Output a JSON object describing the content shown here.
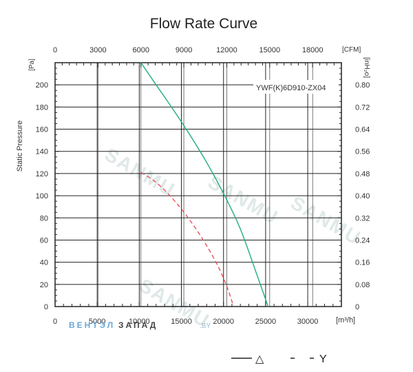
{
  "chart_data": {
    "type": "line",
    "title": "Flow Rate Curve",
    "model_label": "YWF(K)6D910-ZX04",
    "ylabel": "Static Pressure",
    "y_unit_left": "[Pa]",
    "y_unit_right": "[inH₂o]",
    "x_unit_bottom": "[m³/h]",
    "x_unit_top": "[CFM]",
    "xlim": [
      0,
      34000
    ],
    "ylim": [
      0,
      220
    ],
    "grid": true,
    "bottom_ticks": [
      "0",
      "5000",
      "10000",
      "15000",
      "20000",
      "25000",
      "30000"
    ],
    "bottom_tick_values": [
      0,
      5000,
      10000,
      15000,
      20000,
      25000,
      30000
    ],
    "top_ticks": [
      "0",
      "3000",
      "6000",
      "9000",
      "12000",
      "15000",
      "18000"
    ],
    "top_tick_values_cfm": [
      0,
      3000,
      6000,
      9000,
      12000,
      15000,
      18000
    ],
    "left_ticks": [
      "0",
      "20",
      "40",
      "60",
      "80",
      "100",
      "120",
      "140",
      "160",
      "180",
      "200"
    ],
    "left_tick_values": [
      0,
      20,
      40,
      60,
      80,
      100,
      120,
      140,
      160,
      180,
      200
    ],
    "right_ticks": [
      "0",
      "0.08",
      "0.16",
      "0.24",
      "0.32",
      "0.40",
      "0.48",
      "0.56",
      "0.64",
      "0.72",
      "0.80"
    ],
    "right_tick_values_pa": [
      0,
      20,
      40,
      60,
      80,
      100,
      120,
      140,
      160,
      180,
      200
    ],
    "series": [
      {
        "name": "△",
        "style": "solid",
        "color": "#1fae74",
        "x": [
          10200,
          12000,
          14000,
          16000,
          18000,
          20000,
          22000,
          24000,
          25300
        ],
        "y": [
          220,
          200,
          178,
          155,
          130,
          102,
          70,
          28,
          0
        ]
      },
      {
        "name": "Y",
        "style": "dashed",
        "color": "#e8505b",
        "x": [
          10200,
          12000,
          14000,
          16000,
          18000,
          19500,
          20500,
          21200
        ],
        "y": [
          121,
          112,
          97,
          78,
          55,
          34,
          16,
          0
        ]
      }
    ],
    "legend": [
      {
        "label": "△",
        "style": "solid"
      },
      {
        "label": "Y",
        "style": "dashed"
      }
    ],
    "legend_position": "bottom-right"
  },
  "brand": {
    "part1": "ВЕНТЭЛ",
    "part2": "ЗАПАД",
    "site": ".BY"
  },
  "watermark": "SANMU"
}
